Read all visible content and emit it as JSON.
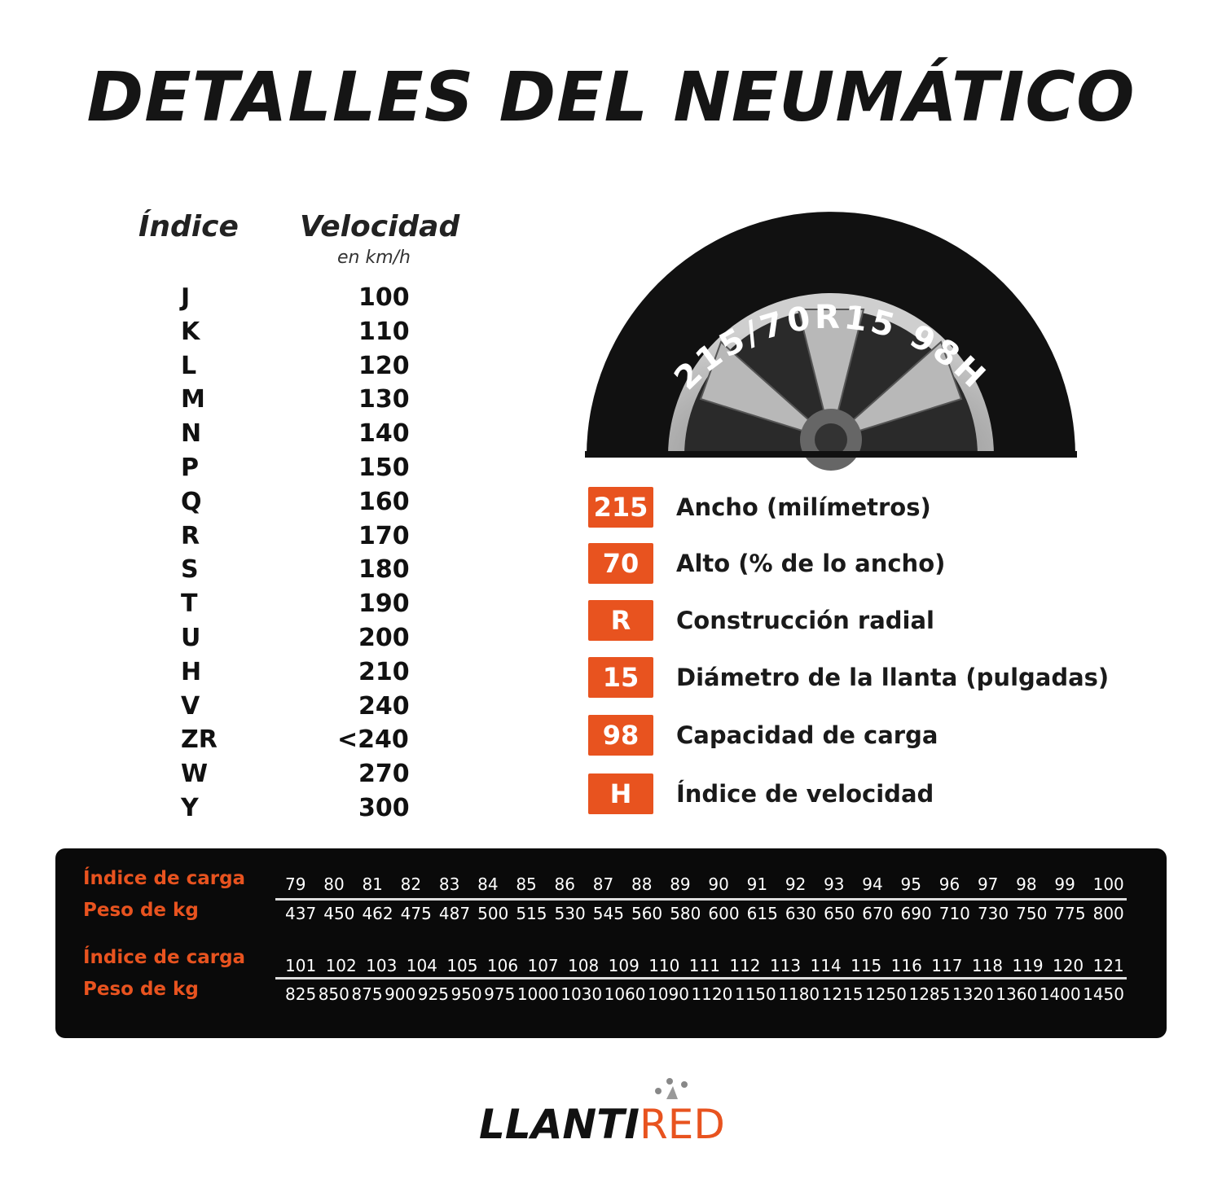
{
  "title": "DETALLES DEL NEUMÁTICO",
  "speed_table": {
    "header_index": "Índice",
    "header_speed": "Velocidad",
    "speed_unit": "en km/h",
    "rows": [
      [
        "J",
        "100"
      ],
      [
        "K",
        "110"
      ],
      [
        "L",
        "120"
      ],
      [
        "M",
        "130"
      ],
      [
        "N",
        "140"
      ],
      [
        "P",
        "150"
      ],
      [
        "Q",
        "160"
      ],
      [
        "R",
        "170"
      ],
      [
        "S",
        "180"
      ],
      [
        "T",
        "190"
      ],
      [
        "U",
        "200"
      ],
      [
        "H",
        "210"
      ],
      [
        "V",
        "240"
      ],
      [
        "ZR",
        "<240"
      ],
      [
        "W",
        "270"
      ],
      [
        "Y",
        "300"
      ]
    ]
  },
  "tire": {
    "sidewall_text": "215/70R15 98H"
  },
  "legend": [
    {
      "code": "215",
      "label": "Ancho (milímetros)"
    },
    {
      "code": "70",
      "label": "Alto (% de lo ancho)"
    },
    {
      "code": "R",
      "label": "Construcción radial"
    },
    {
      "code": "15",
      "label": "Diámetro de la llanta (pulgadas)"
    },
    {
      "code": "98",
      "label": "Capacidad de carga"
    },
    {
      "code": "H",
      "label": "Índice de velocidad"
    }
  ],
  "load_table": {
    "index_label": "Índice de carga",
    "weight_label": "Peso de kg",
    "blocks": [
      {
        "index": [
          "79",
          "80",
          "81",
          "82",
          "83",
          "84",
          "85",
          "86",
          "87",
          "88",
          "89",
          "90",
          "91",
          "92",
          "93",
          "94",
          "95",
          "96",
          "97",
          "98",
          "99",
          "100"
        ],
        "weight": [
          "437",
          "450",
          "462",
          "475",
          "487",
          "500",
          "515",
          "530",
          "545",
          "560",
          "580",
          "600",
          "615",
          "630",
          "650",
          "670",
          "690",
          "710",
          "730",
          "750",
          "775",
          "800"
        ]
      },
      {
        "index": [
          "101",
          "102",
          "103",
          "104",
          "105",
          "106",
          "107",
          "108",
          "109",
          "110",
          "111",
          "112",
          "113",
          "114",
          "115",
          "116",
          "117",
          "118",
          "119",
          "120",
          "121"
        ],
        "weight": [
          "825",
          "850",
          "875",
          "900",
          "925",
          "950",
          "975",
          "1000",
          "1030",
          "1060",
          "1090",
          "1120",
          "1150",
          "1180",
          "1215",
          "1250",
          "1285",
          "1320",
          "1360",
          "1400",
          "1450"
        ]
      }
    ]
  },
  "logo": {
    "part1": "LLANTI",
    "part2": "RED"
  },
  "colors": {
    "accent": "#e8531f",
    "panel": "#0a0a0a"
  }
}
